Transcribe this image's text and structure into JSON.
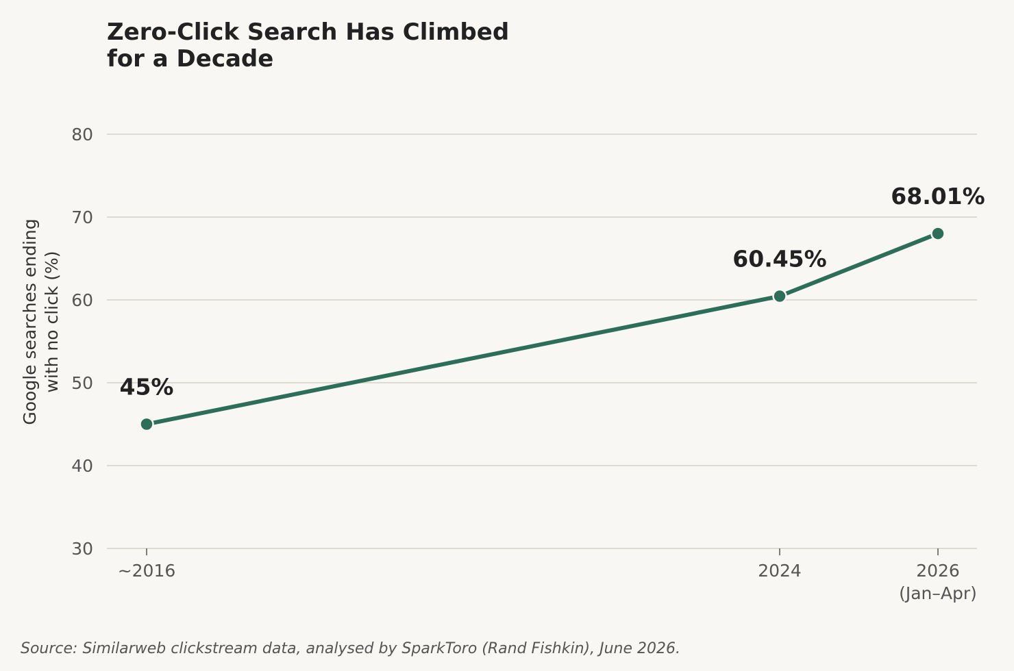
{
  "chart_data": {
    "type": "line",
    "title_lines": [
      "Zero-Click Search Has Climbed",
      "for a Decade"
    ],
    "ylabel_lines": [
      "Google searches ending",
      "with no click (%)"
    ],
    "xlabel": "",
    "x": [
      2016,
      2024,
      2026
    ],
    "x_tick_labels": [
      [
        "~2016"
      ],
      [
        "2024"
      ],
      [
        "2026",
        "(Jan–Apr)"
      ]
    ],
    "series": [
      {
        "values": [
          45,
          60.45,
          68.01
        ],
        "data_labels": [
          "45%",
          "60.45%",
          "68.01%"
        ],
        "color": "#2e6e58"
      }
    ],
    "ylim": [
      30,
      80
    ],
    "y_ticks": [
      30,
      40,
      50,
      60,
      70,
      80
    ],
    "grid": "horizontal",
    "source": "Source: Similarweb clickstream data, analysed by SparkToro (Rand Fishkin), June 2026."
  }
}
